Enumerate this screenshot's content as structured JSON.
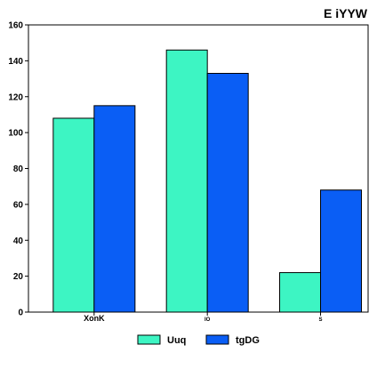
{
  "chart_data": {
    "type": "bar",
    "title": "E iYYW",
    "xlabel": "",
    "ylabel": "",
    "categories": [
      "XonK",
      "IO",
      "S"
    ],
    "series": [
      {
        "name": "Uuq",
        "color": "#3df5c3",
        "values": [
          108,
          146,
          22
        ]
      },
      {
        "name": "tgDG",
        "color": "#0a5ef5",
        "values": [
          115,
          133,
          68
        ]
      }
    ],
    "ylim": [
      0,
      160
    ],
    "yticks": [
      0,
      20,
      40,
      60,
      80,
      100,
      120,
      140,
      160
    ],
    "grid": false,
    "legend_position": "bottom"
  }
}
